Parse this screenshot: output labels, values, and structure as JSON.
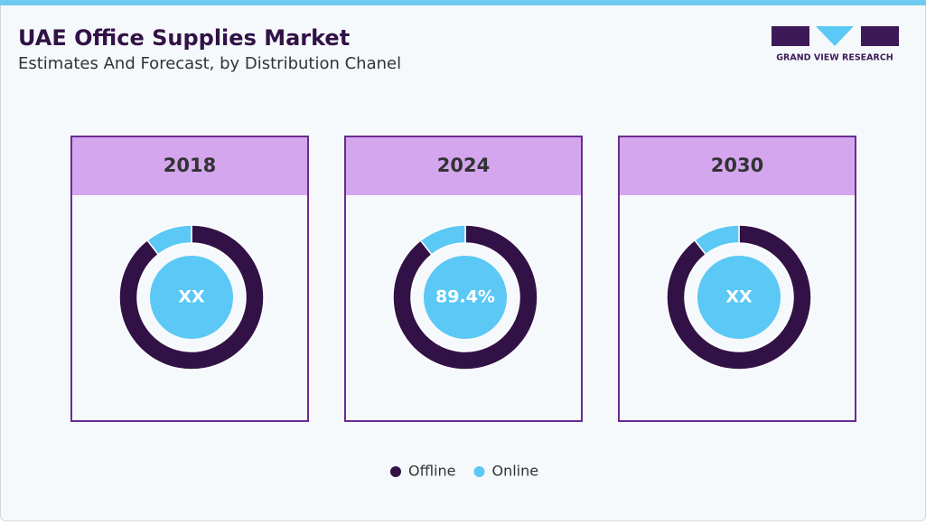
{
  "header": {
    "title": "UAE Office Supplies Market",
    "subtitle": "Estimates And Forecast, by Distribution Chanel"
  },
  "logo": {
    "text": "GRAND VIEW RESEARCH"
  },
  "chart_data": [
    {
      "type": "donut",
      "title": "2018",
      "categories": [
        "Offline",
        "Online"
      ],
      "values": [
        89.5,
        10.5
      ],
      "colors": [
        "#321246",
        "#5bc8f5"
      ],
      "center_label": "XX"
    },
    {
      "type": "donut",
      "title": "2024",
      "categories": [
        "Offline",
        "Online"
      ],
      "values": [
        89.4,
        10.6
      ],
      "colors": [
        "#321246",
        "#5bc8f5"
      ],
      "center_label": "89.4%"
    },
    {
      "type": "donut",
      "title": "2030",
      "categories": [
        "Offline",
        "Online"
      ],
      "values": [
        89.5,
        10.5
      ],
      "colors": [
        "#321246",
        "#5bc8f5"
      ],
      "center_label": "XX"
    }
  ]
}
